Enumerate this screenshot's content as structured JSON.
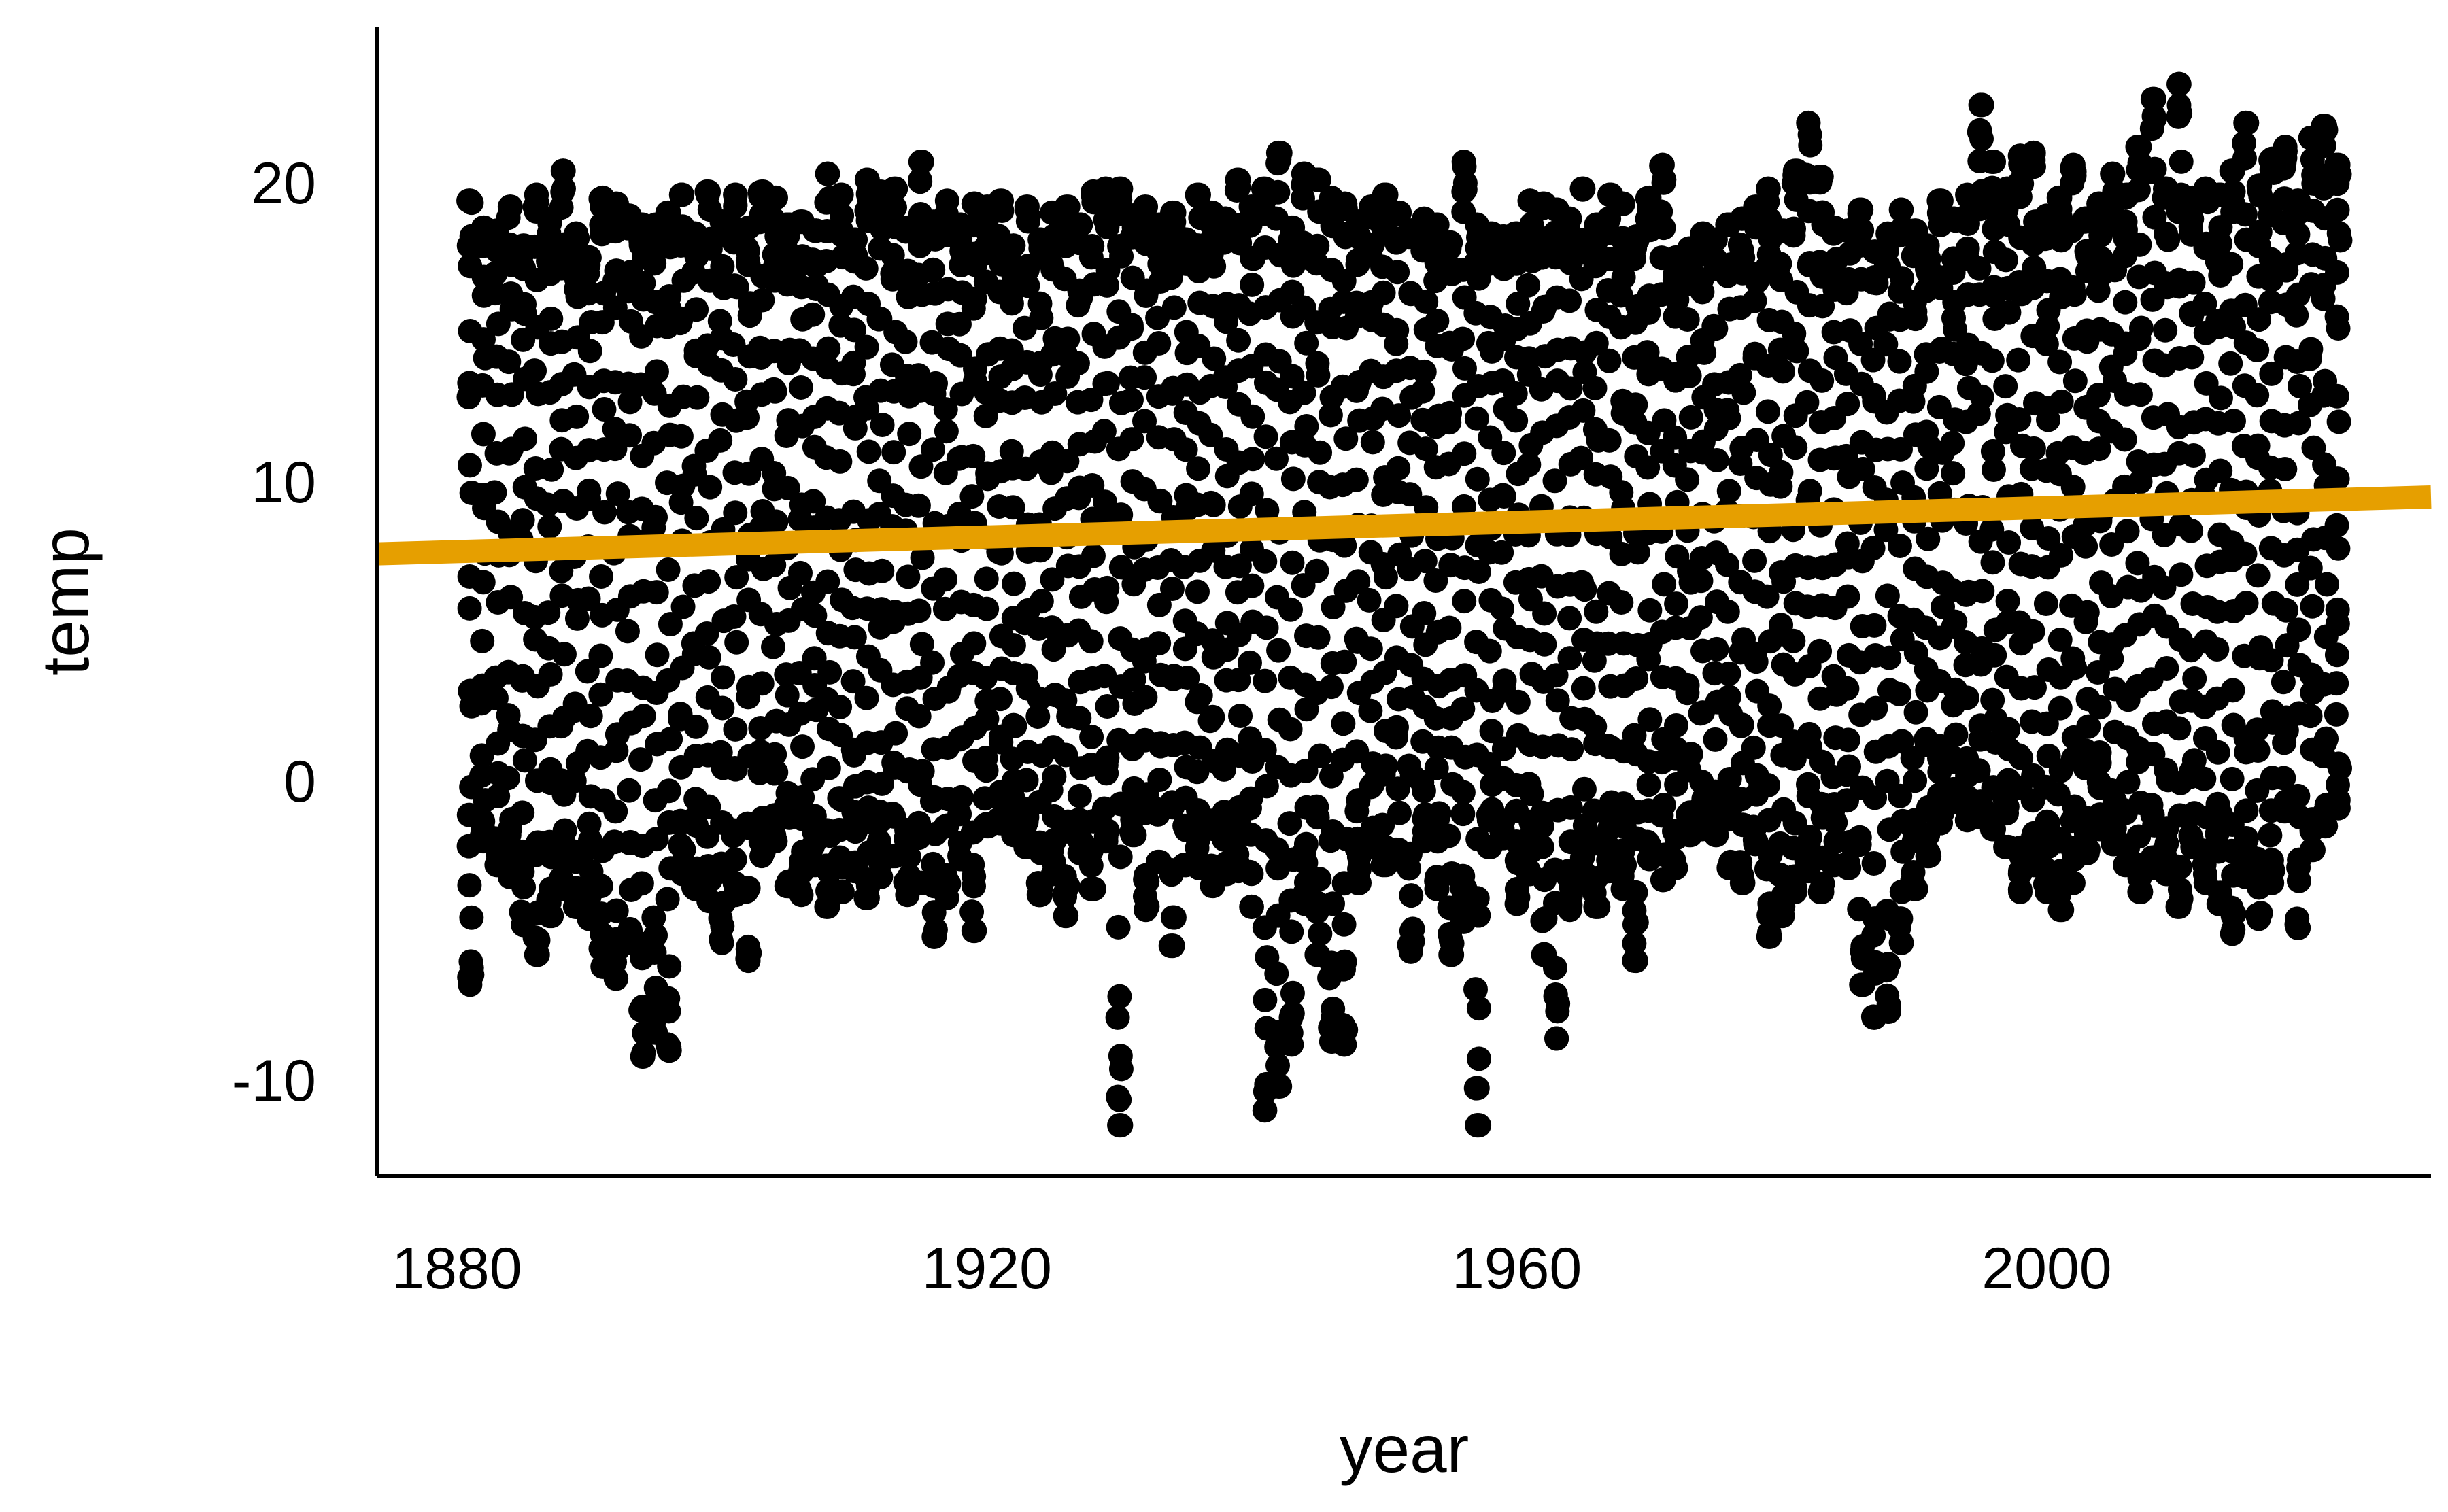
{
  "chart_data": {
    "type": "scatter",
    "title": "",
    "xlabel": "year",
    "ylabel": "temp",
    "xlim": [
      1874,
      2029
    ],
    "ylim": [
      -13.2,
      25.2
    ],
    "x_ticks": [
      {
        "value": 1880,
        "label": "1880"
      },
      {
        "value": 1920,
        "label": "1920"
      },
      {
        "value": 1960,
        "label": "1960"
      },
      {
        "value": 2000,
        "label": "2000"
      }
    ],
    "y_ticks": [
      {
        "value": -10,
        "label": "-10"
      },
      {
        "value": 0,
        "label": "0"
      },
      {
        "value": 10,
        "label": "10"
      },
      {
        "value": 20,
        "label": "20"
      }
    ],
    "grid": false,
    "legend": "none",
    "point_color": "#000000",
    "trend_color": "#E69F00",
    "series": [
      {
        "name": "",
        "kind": "points",
        "description_of_values": "monthly temperatures per year",
        "x_range": [
          1881,
          2022
        ],
        "yearly_min": [
          -6.8,
          -2,
          -2.8,
          -3.2,
          -4.8,
          -5.8,
          -4.5,
          -3.6,
          -4.2,
          -4.6,
          -6.2,
          -6.6,
          -5.4,
          -9.2,
          -8.4,
          -9,
          -3.1,
          -3.6,
          -4,
          -5.4,
          -3.8,
          -6,
          -2.5,
          -2,
          -3.5,
          -3.8,
          -2.8,
          -4.2,
          -3.7,
          -3,
          -3.9,
          -3.2,
          -2.5,
          -3.8,
          -3.4,
          -5.2,
          -3.9,
          -2.6,
          -5,
          -1.5,
          -1.4,
          -1.8,
          -2.2,
          -3.8,
          -3.1,
          -4.5,
          -2.4,
          -3.6,
          -2,
          -11.5,
          -1.8,
          -4.3,
          -2.7,
          -5.5,
          -2.8,
          -2.9,
          -3.5,
          -3.1,
          -3,
          -4.2,
          -11,
          -10.2,
          -8.8,
          -4.1,
          -5.8,
          -8.7,
          -8.8,
          -3.4,
          -2.2,
          -2.8,
          -2.6,
          -5.7,
          -2,
          -3.6,
          -5.8,
          -4.7,
          -11.5,
          -2.2,
          -1.9,
          -4.1,
          -3.1,
          -5.8,
          -8.6,
          -4.3,
          -3.4,
          -4.2,
          -3,
          -3.6,
          -6,
          -2.6,
          -3.3,
          -2.9,
          -1.8,
          -1.6,
          -1.8,
          -2.9,
          -3.4,
          -2.1,
          -5.2,
          -4.5,
          -3.7,
          -3,
          -3.7,
          -2.8,
          -2.9,
          -6.8,
          -7.9,
          -7.7,
          -5.4,
          -3.6,
          -2.5,
          -1.4,
          -0.7,
          -1.3,
          -1.2,
          -1.6,
          -2.2,
          -3.7,
          -2.8,
          -3.7,
          -4.3,
          -3.4,
          -2.4,
          -1.6,
          -2.1,
          -2.8,
          -3.7,
          -2.9,
          -3.1,
          -4.2,
          -2.2,
          -3.4,
          -4.1,
          -5.1,
          -3.2,
          -4.6,
          -3.4,
          -1,
          -4.9,
          -2.3,
          -1.5,
          -0.9
        ],
        "yearly_max": [
          19.4,
          18.5,
          18.4,
          19.2,
          17.9,
          19.6,
          18.8,
          20.4,
          18.3,
          17.5,
          19.5,
          19.3,
          18.9,
          18.6,
          18.6,
          19,
          19.6,
          18.3,
          19.7,
          18.7,
          19.6,
          18.5,
          19.7,
          19.5,
          18.6,
          18.7,
          18.4,
          20.3,
          19.6,
          18.1,
          20.1,
          19.7,
          19.8,
          18.5,
          20.7,
          18.7,
          19.4,
          18.6,
          19.3,
          19.2,
          19.4,
          17.9,
          19.2,
          18.1,
          19,
          19.2,
          18.6,
          19.7,
          19.8,
          19.8,
          18.9,
          19.2,
          18.6,
          19,
          18.1,
          19.6,
          19,
          18.8,
          20.1,
          19.2,
          19.8,
          21,
          18.5,
          20.3,
          20.1,
          19.5,
          19.3,
          18.7,
          19.2,
          19.6,
          19,
          18.4,
          18.8,
          18.6,
          18,
          20.7,
          18.6,
          18.3,
          18.2,
          18.3,
          19.4,
          19.3,
          19.1,
          18.8,
          19.8,
          18.6,
          19.6,
          19.3,
          18.2,
          19.5,
          20.6,
          17.5,
          17.8,
          18.3,
          18.1,
          18.6,
          18.8,
          19.2,
          19.8,
          18.4,
          20.4,
          22,
          20.2,
          18.5,
          18.4,
          19.1,
          17.7,
          18.3,
          19.1,
          18.4,
          17.9,
          19.4,
          18.8,
          19.6,
          22.6,
          20.7,
          19.8,
          20.9,
          21,
          18.9,
          19.5,
          20.6,
          18.8,
          19.3,
          20.3,
          19.6,
          21.2,
          22.8,
          19.8,
          23.3,
          19.5,
          19.8,
          19.6,
          20.4,
          22,
          19.9,
          20.8,
          21.2,
          19.4,
          21.5,
          21.9,
          20.6
        ],
        "x_range_note": ""
      },
      {
        "name": "",
        "kind": "trend-line",
        "x": [
          1874,
          2029
        ],
        "y": [
          7.6,
          9.5
        ]
      }
    ]
  }
}
